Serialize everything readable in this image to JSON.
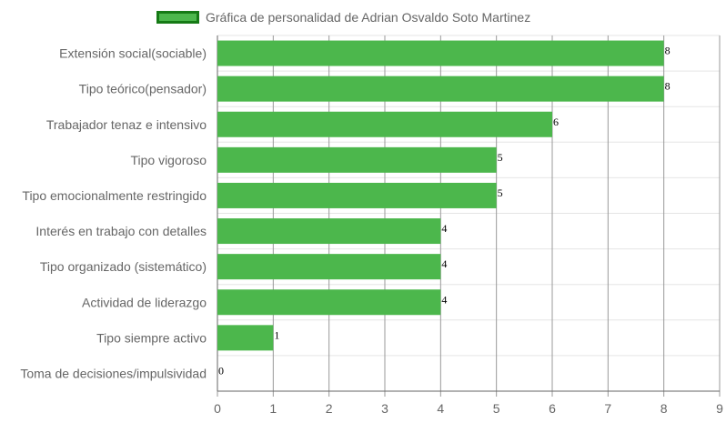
{
  "chart_data": {
    "type": "bar",
    "orientation": "horizontal",
    "categories": [
      "Extensión social(sociable)",
      "Tipo teórico(pensador)",
      "Trabajador tenaz e intensivo",
      "Tipo vigoroso",
      "Tipo emocionalmente restringido",
      "Interés en trabajo con detalles",
      "Tipo organizado (sistemático)",
      "Actividad de liderazgo",
      "Tipo siempre activo",
      "Toma de decisiones/impulsividad"
    ],
    "series": [
      {
        "name": "Gráfica de personalidad de Adrian Osvaldo Soto Martinez",
        "values": [
          8,
          8,
          6,
          5,
          5,
          4,
          4,
          4,
          1,
          0
        ]
      }
    ],
    "xlim": [
      0,
      9
    ],
    "x_ticks": [
      "0",
      "1",
      "2",
      "3",
      "4",
      "5",
      "6",
      "7",
      "8",
      "9"
    ],
    "grid": true,
    "legend_position": "top",
    "data_labels": true,
    "colors": {
      "bar_fill": "#4cb74c",
      "legend_border": "#157a15",
      "grid_vertical": "#999999",
      "grid_horizontal": "#e5e5e5"
    }
  }
}
